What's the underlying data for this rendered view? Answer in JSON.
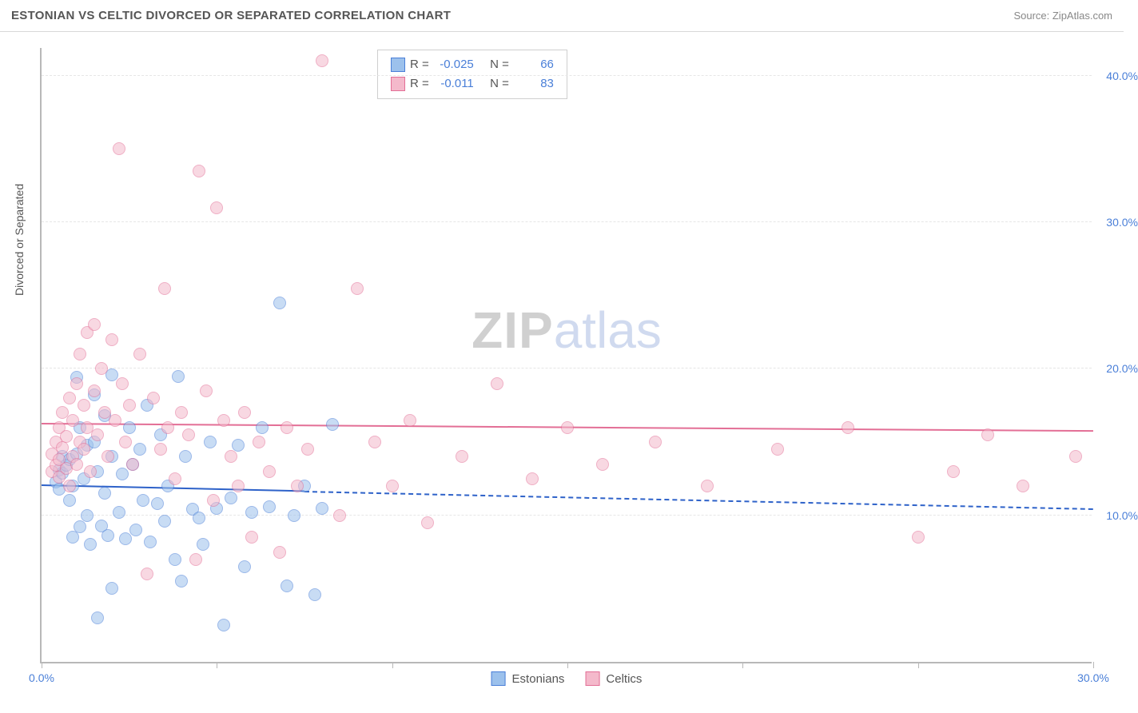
{
  "header": {
    "title": "ESTONIAN VS CELTIC DIVORCED OR SEPARATED CORRELATION CHART",
    "source": "Source: ZipAtlas.com"
  },
  "watermark": {
    "part1": "ZIP",
    "part2": "atlas"
  },
  "chart": {
    "type": "scatter",
    "background_color": "#ffffff",
    "grid_color": "#e6e6e6",
    "axis_color": "#b8b8b8",
    "tick_label_color": "#4a7fd8",
    "ylabel": "Divorced or Separated",
    "ylabel_fontsize": 14,
    "xlim": [
      0,
      30
    ],
    "ylim": [
      0,
      42
    ],
    "xticks": [
      0,
      5,
      10,
      15,
      20,
      25,
      30
    ],
    "xtick_labels": [
      "0.0%",
      "",
      "",
      "",
      "",
      "",
      "30.0%"
    ],
    "ygrid": [
      10,
      20,
      30,
      40
    ],
    "ytick_labels": [
      "10.0%",
      "20.0%",
      "30.0%",
      "40.0%"
    ],
    "point_radius": 8,
    "point_opacity": 0.55,
    "series": [
      {
        "name": "Estonians",
        "fill": "#9cc1ec",
        "stroke": "#4a7fd8",
        "trend_color": "#2e62c9",
        "trend_y_start": 12.2,
        "trend_y_end": 10.6,
        "trend_solid_until_x": 7.5,
        "R": "-0.025",
        "N": "66",
        "points": [
          [
            0.4,
            12.3
          ],
          [
            0.5,
            13.1
          ],
          [
            0.5,
            11.8
          ],
          [
            0.6,
            12.9
          ],
          [
            0.6,
            14.0
          ],
          [
            0.7,
            13.4
          ],
          [
            0.8,
            11.0
          ],
          [
            0.8,
            13.8
          ],
          [
            0.9,
            12.0
          ],
          [
            0.9,
            8.5
          ],
          [
            1.0,
            19.4
          ],
          [
            1.0,
            14.2
          ],
          [
            1.1,
            16.0
          ],
          [
            1.1,
            9.2
          ],
          [
            1.2,
            12.5
          ],
          [
            1.3,
            14.8
          ],
          [
            1.3,
            10.0
          ],
          [
            1.4,
            8.0
          ],
          [
            1.5,
            18.2
          ],
          [
            1.5,
            15.0
          ],
          [
            1.6,
            13.0
          ],
          [
            1.6,
            3.0
          ],
          [
            1.7,
            9.3
          ],
          [
            1.8,
            16.8
          ],
          [
            1.8,
            11.5
          ],
          [
            1.9,
            8.6
          ],
          [
            2.0,
            14.0
          ],
          [
            2.0,
            19.6
          ],
          [
            2.0,
            5.0
          ],
          [
            2.2,
            10.2
          ],
          [
            2.3,
            12.8
          ],
          [
            2.4,
            8.4
          ],
          [
            2.5,
            16.0
          ],
          [
            2.6,
            13.5
          ],
          [
            2.7,
            9.0
          ],
          [
            2.8,
            14.5
          ],
          [
            2.9,
            11.0
          ],
          [
            3.0,
            17.5
          ],
          [
            3.1,
            8.2
          ],
          [
            3.3,
            10.8
          ],
          [
            3.4,
            15.5
          ],
          [
            3.5,
            9.6
          ],
          [
            3.6,
            12.0
          ],
          [
            3.8,
            7.0
          ],
          [
            3.9,
            19.5
          ],
          [
            4.0,
            5.5
          ],
          [
            4.1,
            14.0
          ],
          [
            4.3,
            10.4
          ],
          [
            4.5,
            9.8
          ],
          [
            4.6,
            8.0
          ],
          [
            4.8,
            15.0
          ],
          [
            5.0,
            10.5
          ],
          [
            5.2,
            2.5
          ],
          [
            5.4,
            11.2
          ],
          [
            5.6,
            14.8
          ],
          [
            5.8,
            6.5
          ],
          [
            6.0,
            10.2
          ],
          [
            6.3,
            16.0
          ],
          [
            6.5,
            10.6
          ],
          [
            6.8,
            24.5
          ],
          [
            7.0,
            5.2
          ],
          [
            7.2,
            10.0
          ],
          [
            7.5,
            12.0
          ],
          [
            7.8,
            4.6
          ],
          [
            8.0,
            10.5
          ],
          [
            8.3,
            16.2
          ]
        ]
      },
      {
        "name": "Celtics",
        "fill": "#f4b9cb",
        "stroke": "#e36f96",
        "trend_color": "#e36f96",
        "trend_y_start": 16.4,
        "trend_y_end": 15.9,
        "trend_solid_until_x": 30,
        "R": "-0.011",
        "N": "83",
        "points": [
          [
            0.3,
            13.0
          ],
          [
            0.3,
            14.2
          ],
          [
            0.4,
            13.4
          ],
          [
            0.4,
            15.0
          ],
          [
            0.5,
            13.8
          ],
          [
            0.5,
            16.0
          ],
          [
            0.5,
            12.6
          ],
          [
            0.6,
            14.6
          ],
          [
            0.6,
            17.0
          ],
          [
            0.7,
            13.2
          ],
          [
            0.7,
            15.4
          ],
          [
            0.8,
            12.0
          ],
          [
            0.8,
            18.0
          ],
          [
            0.9,
            14.0
          ],
          [
            0.9,
            16.5
          ],
          [
            1.0,
            13.5
          ],
          [
            1.0,
            19.0
          ],
          [
            1.1,
            15.0
          ],
          [
            1.1,
            21.0
          ],
          [
            1.2,
            17.5
          ],
          [
            1.2,
            14.5
          ],
          [
            1.3,
            22.5
          ],
          [
            1.3,
            16.0
          ],
          [
            1.4,
            13.0
          ],
          [
            1.5,
            23.0
          ],
          [
            1.5,
            18.5
          ],
          [
            1.6,
            15.5
          ],
          [
            1.7,
            20.0
          ],
          [
            1.8,
            17.0
          ],
          [
            1.9,
            14.0
          ],
          [
            2.0,
            22.0
          ],
          [
            2.1,
            16.5
          ],
          [
            2.2,
            35.0
          ],
          [
            2.3,
            19.0
          ],
          [
            2.4,
            15.0
          ],
          [
            2.5,
            17.5
          ],
          [
            2.6,
            13.5
          ],
          [
            2.8,
            21.0
          ],
          [
            3.0,
            6.0
          ],
          [
            3.2,
            18.0
          ],
          [
            3.4,
            14.5
          ],
          [
            3.5,
            25.5
          ],
          [
            3.6,
            16.0
          ],
          [
            3.8,
            12.5
          ],
          [
            4.0,
            17.0
          ],
          [
            4.2,
            15.5
          ],
          [
            4.4,
            7.0
          ],
          [
            4.5,
            33.5
          ],
          [
            4.7,
            18.5
          ],
          [
            4.9,
            11.0
          ],
          [
            5.0,
            31.0
          ],
          [
            5.2,
            16.5
          ],
          [
            5.4,
            14.0
          ],
          [
            5.6,
            12.0
          ],
          [
            5.8,
            17.0
          ],
          [
            6.0,
            8.5
          ],
          [
            6.2,
            15.0
          ],
          [
            6.5,
            13.0
          ],
          [
            6.8,
            7.5
          ],
          [
            7.0,
            16.0
          ],
          [
            7.3,
            12.0
          ],
          [
            7.6,
            14.5
          ],
          [
            8.0,
            41.0
          ],
          [
            8.5,
            10.0
          ],
          [
            9.0,
            25.5
          ],
          [
            9.5,
            15.0
          ],
          [
            10.0,
            12.0
          ],
          [
            10.5,
            16.5
          ],
          [
            11.0,
            9.5
          ],
          [
            12.0,
            14.0
          ],
          [
            13.0,
            19.0
          ],
          [
            14.0,
            12.5
          ],
          [
            15.0,
            16.0
          ],
          [
            16.0,
            13.5
          ],
          [
            17.5,
            15.0
          ],
          [
            19.0,
            12.0
          ],
          [
            21.0,
            14.5
          ],
          [
            23.0,
            16.0
          ],
          [
            25.0,
            8.5
          ],
          [
            26.0,
            13.0
          ],
          [
            27.0,
            15.5
          ],
          [
            28.0,
            12.0
          ],
          [
            29.5,
            14.0
          ]
        ]
      }
    ]
  },
  "stats_box": {
    "label_R": "R =",
    "label_N": "N ="
  },
  "legend": {
    "label1": "Estonians",
    "label2": "Celtics"
  }
}
